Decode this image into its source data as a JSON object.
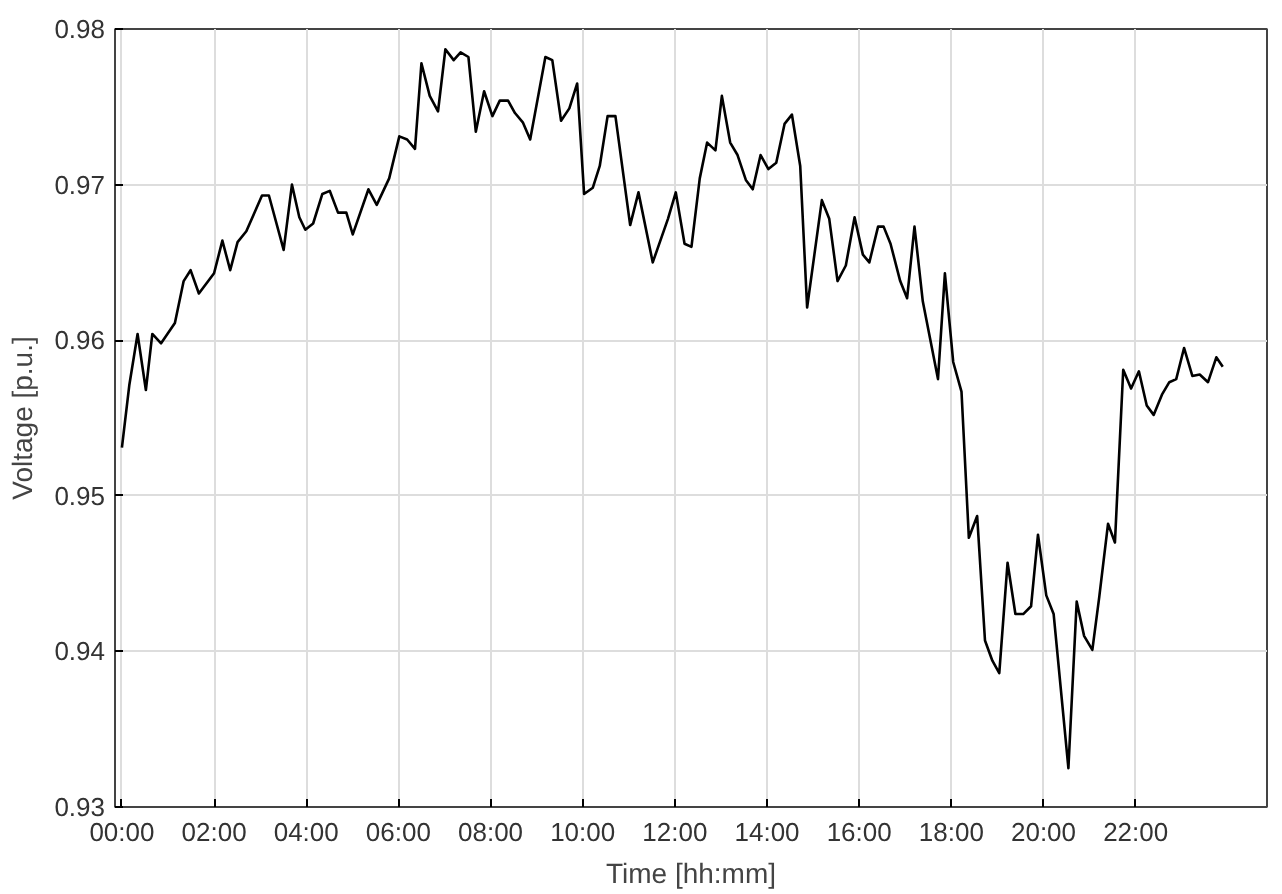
{
  "chart_data": {
    "type": "line",
    "xlabel": "Time [hh:mm]",
    "ylabel": "Voltage [p.u.]",
    "x": [
      0,
      0.16,
      0.34,
      0.52,
      0.66,
      0.85,
      1.15,
      1.34,
      1.49,
      1.67,
      2.0,
      2.18,
      2.35,
      2.51,
      2.7,
      3.04,
      3.19,
      3.51,
      3.69,
      3.85,
      3.98,
      4.15,
      4.35,
      4.51,
      4.69,
      4.87,
      5.01,
      5.35,
      5.53,
      5.8,
      6.02,
      6.19,
      6.36,
      6.5,
      6.68,
      6.86,
      7.02,
      7.2,
      7.35,
      7.52,
      7.68,
      7.86,
      8.04,
      8.2,
      8.38,
      8.53,
      8.7,
      8.86,
      9.19,
      9.34,
      9.53,
      9.71,
      9.88,
      10.03,
      10.22,
      10.37,
      10.54,
      10.71,
      11.03,
      11.21,
      11.52,
      11.85,
      12.02,
      12.21,
      12.36,
      12.54,
      12.7,
      12.88,
      13.02,
      13.2,
      13.36,
      13.54,
      13.69,
      13.86,
      14.03,
      14.2,
      14.38,
      14.54,
      14.72,
      14.87,
      15.19,
      15.35,
      15.53,
      15.71,
      15.9,
      16.08,
      16.22,
      16.41,
      16.53,
      16.68,
      16.89,
      17.04,
      17.2,
      17.38,
      17.71,
      17.86,
      18.04,
      18.22,
      18.38,
      18.56,
      18.73,
      18.89,
      19.04,
      19.22,
      19.39,
      19.56,
      19.73,
      19.88,
      20.06,
      20.22,
      20.54,
      20.72,
      20.88,
      21.06,
      21.21,
      21.4,
      21.55,
      21.73,
      21.9,
      22.07,
      22.24,
      22.39,
      22.57,
      22.73,
      22.88,
      23.05,
      23.23,
      23.39,
      23.57,
      23.75,
      23.89
    ],
    "series": [
      {
        "color": "#000000",
        "values": [
          0.9531,
          0.9571,
          0.9604,
          0.9568,
          0.9604,
          0.9598,
          0.9611,
          0.9638,
          0.9645,
          0.963,
          0.9643,
          0.9664,
          0.9645,
          0.9663,
          0.967,
          0.9693,
          0.9693,
          0.9658,
          0.97,
          0.9679,
          0.9671,
          0.9675,
          0.9694,
          0.9696,
          0.9682,
          0.9682,
          0.9668,
          0.9697,
          0.9687,
          0.9704,
          0.9731,
          0.9729,
          0.9723,
          0.9778,
          0.9757,
          0.9747,
          0.9787,
          0.978,
          0.9785,
          0.9782,
          0.9734,
          0.976,
          0.9744,
          0.9754,
          0.9754,
          0.9746,
          0.974,
          0.9729,
          0.9782,
          0.978,
          0.9741,
          0.9749,
          0.9765,
          0.9694,
          0.9698,
          0.9712,
          0.9744,
          0.9744,
          0.9674,
          0.9695,
          0.965,
          0.9678,
          0.9695,
          0.9662,
          0.966,
          0.9704,
          0.9727,
          0.9722,
          0.9757,
          0.9727,
          0.9719,
          0.9703,
          0.9697,
          0.9719,
          0.971,
          0.9714,
          0.9739,
          0.9745,
          0.9712,
          0.9621,
          0.969,
          0.9678,
          0.9638,
          0.9648,
          0.9679,
          0.9655,
          0.965,
          0.9673,
          0.9673,
          0.9662,
          0.9638,
          0.9627,
          0.9673,
          0.9625,
          0.9575,
          0.9643,
          0.9586,
          0.9567,
          0.9473,
          0.9487,
          0.9407,
          0.9394,
          0.9386,
          0.9457,
          0.9424,
          0.9424,
          0.9429,
          0.9475,
          0.9436,
          0.9424,
          0.9325,
          0.9432,
          0.941,
          0.9401,
          0.9435,
          0.9482,
          0.947,
          0.9581,
          0.9569,
          0.958,
          0.9558,
          0.9552,
          0.9565,
          0.9573,
          0.9575,
          0.9595,
          0.9577,
          0.9578,
          0.9573,
          0.9589,
          0.9583
        ]
      }
    ],
    "xlim": [
      -0.15,
      24.85
    ],
    "ylim": [
      0.93,
      0.98
    ],
    "xticks": [
      {
        "value": 0,
        "label": "00:00"
      },
      {
        "value": 2,
        "label": "02:00"
      },
      {
        "value": 4,
        "label": "04:00"
      },
      {
        "value": 6,
        "label": "06:00"
      },
      {
        "value": 8,
        "label": "08:00"
      },
      {
        "value": 10,
        "label": "10:00"
      },
      {
        "value": 12,
        "label": "12:00"
      },
      {
        "value": 14,
        "label": "14:00"
      },
      {
        "value": 16,
        "label": "16:00"
      },
      {
        "value": 18,
        "label": "18:00"
      },
      {
        "value": 20,
        "label": "20:00"
      },
      {
        "value": 22,
        "label": "22:00"
      }
    ],
    "yticks": [
      0.93,
      0.94,
      0.95,
      0.96,
      0.97,
      0.98
    ],
    "grid": true,
    "marker": "none",
    "line_style": "solid"
  }
}
